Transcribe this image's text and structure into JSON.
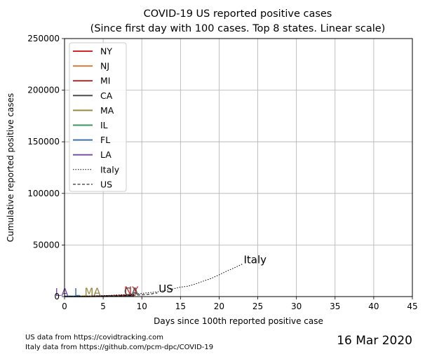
{
  "chart_data": {
    "type": "line",
    "title_line1": "COVID-19 US reported positive cases",
    "title_line2": "(Since first day with 100 cases. Top 8 states. Linear scale)",
    "xlabel": "Days since 100th reported positive case",
    "ylabel": "Cumulative reported positive cases",
    "xlim": [
      0,
      45
    ],
    "ylim": [
      0,
      250000
    ],
    "xticks": [
      0,
      5,
      10,
      15,
      20,
      25,
      30,
      35,
      40,
      45
    ],
    "yticks": [
      0,
      50000,
      100000,
      150000,
      200000,
      250000
    ],
    "grid": true,
    "legend_position": "top-left",
    "series": [
      {
        "name": "NY",
        "color": "#d62728",
        "style": "solid",
        "label": "NY",
        "x": [
          0,
          1,
          2,
          3,
          4,
          5,
          6,
          7,
          8,
          9
        ],
        "y": [
          105,
          142,
          173,
          220,
          421,
          524,
          729,
          950,
          1374,
          1700
        ]
      },
      {
        "name": "NJ",
        "color": "#e07b39",
        "style": "solid",
        "label": "",
        "x": [
          0,
          1,
          2,
          3
        ],
        "y": [
          178,
          267,
          350,
          500
        ]
      },
      {
        "name": "MI",
        "color": "#a52a2a",
        "style": "solid",
        "label": "",
        "x": [
          0
        ],
        "y": [
          120
        ]
      },
      {
        "name": "CA",
        "color": "#4d4d4d",
        "style": "solid",
        "label": "CA",
        "x": [
          0,
          1,
          2,
          3,
          4,
          5,
          6,
          7,
          8,
          9
        ],
        "y": [
          133,
          157,
          177,
          198,
          252,
          293,
          335,
          392,
          472,
          557
        ]
      },
      {
        "name": "MA",
        "color": "#998a3f",
        "style": "solid",
        "label": "MA",
        "x": [
          0,
          1,
          2,
          3,
          4
        ],
        "y": [
          108,
          123,
          138,
          164,
          197
        ]
      },
      {
        "name": "IL",
        "color": "#3a9a5a",
        "style": "solid",
        "label": "",
        "x": [
          0,
          1
        ],
        "y": [
          105,
          115
        ]
      },
      {
        "name": "FL",
        "color": "#3a6fb0",
        "style": "solid",
        "label": "L",
        "x": [
          0,
          1,
          2
        ],
        "y": [
          100,
          123,
          155
        ]
      },
      {
        "name": "LA",
        "color": "#7b52a6",
        "style": "solid",
        "label": "LA",
        "x": [
          0
        ],
        "y": [
          136
        ]
      },
      {
        "name": "Italy",
        "color": "#000000",
        "style": "dotted",
        "label": "Italy",
        "x": [
          0,
          1,
          2,
          3,
          4,
          5,
          6,
          7,
          8,
          9,
          10,
          11,
          12,
          13,
          14,
          15,
          16,
          17,
          18,
          19,
          20,
          21,
          22,
          23
        ],
        "y": [
          150,
          229,
          322,
          400,
          650,
          888,
          1128,
          1694,
          2036,
          2502,
          3089,
          3858,
          4636,
          5883,
          7375,
          9172,
          10149,
          12462,
          15113,
          17660,
          21157,
          24747,
          27980,
          31506
        ]
      },
      {
        "name": "US",
        "color": "#000000",
        "style": "dashed",
        "label": "US",
        "x": [
          0,
          1,
          2,
          3,
          4,
          5,
          6,
          7,
          8,
          9,
          10,
          11,
          12
        ],
        "y": [
          100,
          130,
          160,
          220,
          300,
          400,
          520,
          700,
          960,
          1300,
          1700,
          2300,
          3500
        ]
      }
    ]
  },
  "footnotes": {
    "us_source": "US data from https://covidtracking.com",
    "italy_source": "Italy data from https://github.com/pcm-dpc/COVID-19"
  },
  "date_stamp": "16 Mar 2020"
}
